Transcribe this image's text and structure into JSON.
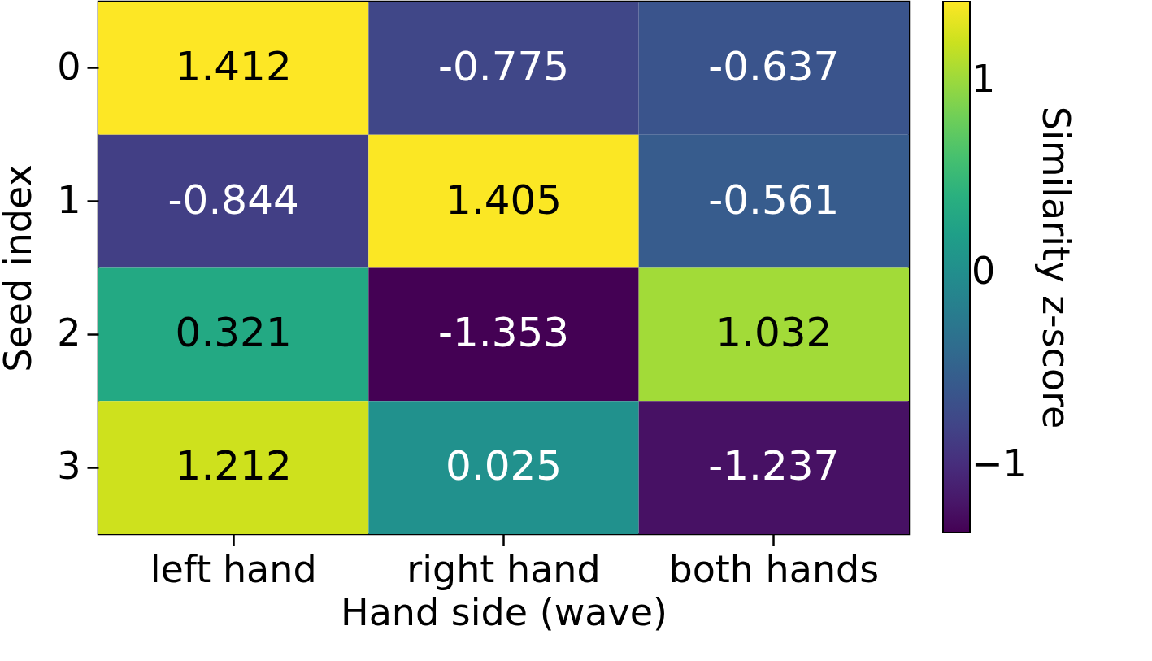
{
  "chart_data": {
    "type": "heatmap",
    "xlabel": "Hand side (wave)",
    "ylabel": "Seed index",
    "clabel": "Similarity z-score",
    "categories": [
      "left hand",
      "right hand",
      "both hands"
    ],
    "y_categories": [
      "0",
      "1",
      "2",
      "3"
    ],
    "cells": [
      [
        1.412,
        -0.775,
        -0.637
      ],
      [
        -0.844,
        1.405,
        -0.561
      ],
      [
        0.321,
        -1.353,
        1.032
      ],
      [
        1.212,
        0.025,
        -1.237
      ]
    ],
    "clim": [
      -1.353,
      1.412
    ],
    "cticks": [
      {
        "value": -1,
        "label": "−1"
      },
      0,
      1
    ],
    "data_labels": true
  }
}
